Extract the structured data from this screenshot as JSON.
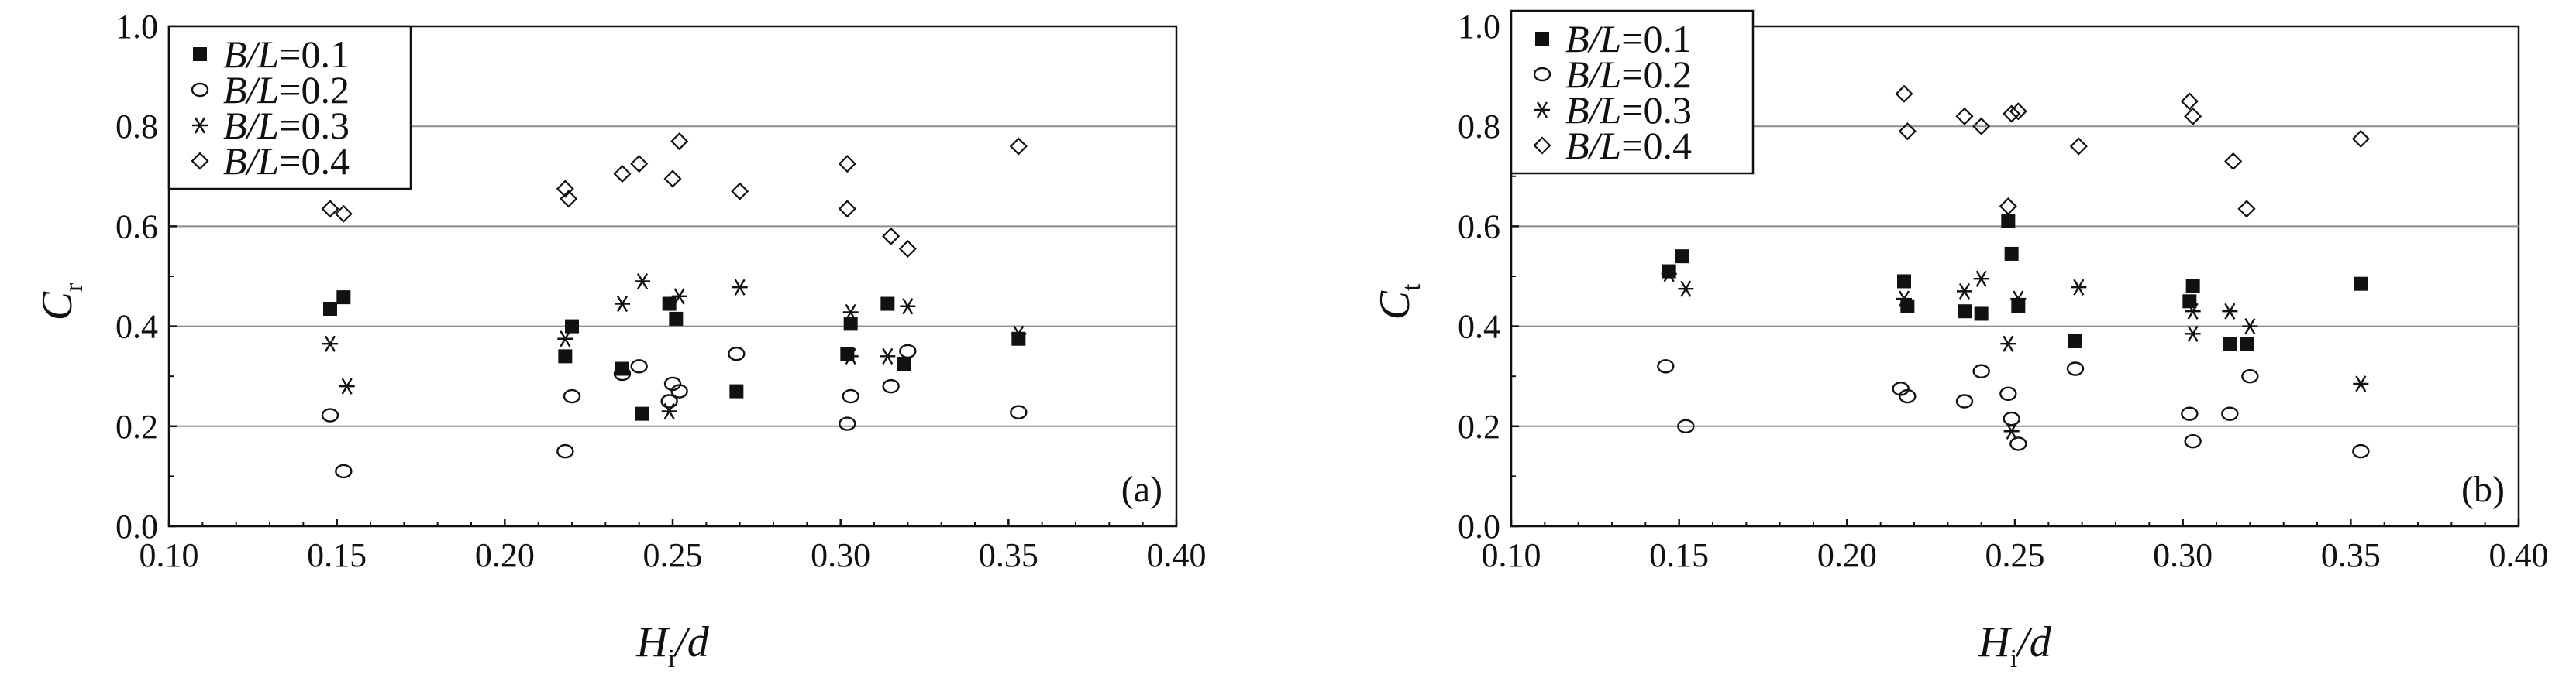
{
  "colors": {
    "grid": "#8c8c8c",
    "axis": "#111111",
    "marker": "#111111",
    "background": "#ffffff"
  },
  "series_labels": [
    "B/L=0.1",
    "B/L=0.2",
    "B/L=0.3",
    "B/L=0.4"
  ],
  "chart_data": [
    {
      "type": "scatter",
      "panel_label": "(a)",
      "xlabel": "H_i/d",
      "ylabel": "C_r",
      "xlim": [
        0.1,
        0.4
      ],
      "ylim": [
        0.0,
        1.0
      ],
      "xticks": [
        "0.10",
        "0.15",
        "0.20",
        "0.25",
        "0.30",
        "0.35",
        "0.40"
      ],
      "yticks": [
        "0.0",
        "0.2",
        "0.4",
        "0.6",
        "0.8",
        "1.0"
      ],
      "grid": "horizontal at 0.2, 0.4, 0.6, 0.8",
      "legend_position": "top-left",
      "series": [
        {
          "name": "B/L=0.1",
          "marker": "filled-square",
          "points": [
            [
              0.148,
              0.435
            ],
            [
              0.152,
              0.458
            ],
            [
              0.218,
              0.34
            ],
            [
              0.22,
              0.4
            ],
            [
              0.235,
              0.315
            ],
            [
              0.241,
              0.225
            ],
            [
              0.249,
              0.445
            ],
            [
              0.251,
              0.415
            ],
            [
              0.269,
              0.27
            ],
            [
              0.302,
              0.345
            ],
            [
              0.303,
              0.405
            ],
            [
              0.314,
              0.445
            ],
            [
              0.319,
              0.325
            ],
            [
              0.353,
              0.375
            ]
          ]
        },
        {
          "name": "B/L=0.2",
          "marker": "open-circle",
          "points": [
            [
              0.148,
              0.222
            ],
            [
              0.152,
              0.11
            ],
            [
              0.218,
              0.15
            ],
            [
              0.22,
              0.26
            ],
            [
              0.235,
              0.305
            ],
            [
              0.24,
              0.32
            ],
            [
              0.249,
              0.25
            ],
            [
              0.25,
              0.285
            ],
            [
              0.252,
              0.27
            ],
            [
              0.269,
              0.345
            ],
            [
              0.302,
              0.205
            ],
            [
              0.303,
              0.26
            ],
            [
              0.315,
              0.28
            ],
            [
              0.32,
              0.35
            ],
            [
              0.353,
              0.228
            ]
          ]
        },
        {
          "name": "B/L=0.3",
          "marker": "asterisk",
          "points": [
            [
              0.148,
              0.365
            ],
            [
              0.153,
              0.28
            ],
            [
              0.218,
              0.375
            ],
            [
              0.235,
              0.445
            ],
            [
              0.241,
              0.49
            ],
            [
              0.249,
              0.23
            ],
            [
              0.252,
              0.46
            ],
            [
              0.27,
              0.478
            ],
            [
              0.303,
              0.428
            ],
            [
              0.303,
              0.34
            ],
            [
              0.314,
              0.34
            ],
            [
              0.32,
              0.44
            ],
            [
              0.353,
              0.385
            ]
          ]
        },
        {
          "name": "B/L=0.4",
          "marker": "open-diamond",
          "points": [
            [
              0.148,
              0.635
            ],
            [
              0.152,
              0.625
            ],
            [
              0.218,
              0.675
            ],
            [
              0.219,
              0.655
            ],
            [
              0.235,
              0.705
            ],
            [
              0.24,
              0.725
            ],
            [
              0.25,
              0.695
            ],
            [
              0.252,
              0.77
            ],
            [
              0.27,
              0.67
            ],
            [
              0.302,
              0.725
            ],
            [
              0.302,
              0.635
            ],
            [
              0.315,
              0.58
            ],
            [
              0.32,
              0.555
            ],
            [
              0.353,
              0.76
            ]
          ]
        }
      ]
    },
    {
      "type": "scatter",
      "panel_label": "(b)",
      "xlabel": "H_i/d",
      "ylabel": "C_t",
      "xlim": [
        0.1,
        0.4
      ],
      "ylim": [
        0.0,
        1.0
      ],
      "xticks": [
        "0.10",
        "0.15",
        "0.20",
        "0.25",
        "0.30",
        "0.35",
        "0.40"
      ],
      "yticks": [
        "0.0",
        "0.2",
        "0.4",
        "0.6",
        "0.8",
        "1.0"
      ],
      "grid": "horizontal at 0.2, 0.4, 0.6, 0.8",
      "legend_position": "top-left",
      "series": [
        {
          "name": "B/L=0.1",
          "marker": "filled-square",
          "points": [
            [
              0.147,
              0.51
            ],
            [
              0.151,
              0.54
            ],
            [
              0.217,
              0.49
            ],
            [
              0.218,
              0.44
            ],
            [
              0.235,
              0.43
            ],
            [
              0.24,
              0.425
            ],
            [
              0.248,
              0.61
            ],
            [
              0.249,
              0.545
            ],
            [
              0.251,
              0.44
            ],
            [
              0.268,
              0.37
            ],
            [
              0.302,
              0.45
            ],
            [
              0.303,
              0.48
            ],
            [
              0.314,
              0.365
            ],
            [
              0.319,
              0.365
            ],
            [
              0.353,
              0.485
            ]
          ]
        },
        {
          "name": "B/L=0.2",
          "marker": "open-circle",
          "points": [
            [
              0.146,
              0.32
            ],
            [
              0.152,
              0.2
            ],
            [
              0.216,
              0.275
            ],
            [
              0.218,
              0.26
            ],
            [
              0.235,
              0.25
            ],
            [
              0.24,
              0.31
            ],
            [
              0.248,
              0.265
            ],
            [
              0.249,
              0.215
            ],
            [
              0.251,
              0.165
            ],
            [
              0.268,
              0.315
            ],
            [
              0.302,
              0.225
            ],
            [
              0.303,
              0.17
            ],
            [
              0.314,
              0.225
            ],
            [
              0.32,
              0.3
            ],
            [
              0.353,
              0.15
            ]
          ]
        },
        {
          "name": "B/L=0.3",
          "marker": "asterisk",
          "points": [
            [
              0.147,
              0.505
            ],
            [
              0.152,
              0.475
            ],
            [
              0.217,
              0.455
            ],
            [
              0.235,
              0.47
            ],
            [
              0.24,
              0.495
            ],
            [
              0.248,
              0.365
            ],
            [
              0.249,
              0.19
            ],
            [
              0.251,
              0.455
            ],
            [
              0.269,
              0.478
            ],
            [
              0.303,
              0.385
            ],
            [
              0.303,
              0.43
            ],
            [
              0.314,
              0.43
            ],
            [
              0.32,
              0.4
            ],
            [
              0.353,
              0.285
            ]
          ]
        },
        {
          "name": "B/L=0.4",
          "marker": "open-diamond",
          "points": [
            [
              0.217,
              0.865
            ],
            [
              0.218,
              0.79
            ],
            [
              0.235,
              0.82
            ],
            [
              0.24,
              0.8
            ],
            [
              0.248,
              0.64
            ],
            [
              0.249,
              0.825
            ],
            [
              0.251,
              0.83
            ],
            [
              0.269,
              0.76
            ],
            [
              0.302,
              0.85
            ],
            [
              0.303,
              0.82
            ],
            [
              0.315,
              0.73
            ],
            [
              0.319,
              0.635
            ],
            [
              0.353,
              0.775
            ]
          ]
        }
      ]
    }
  ]
}
